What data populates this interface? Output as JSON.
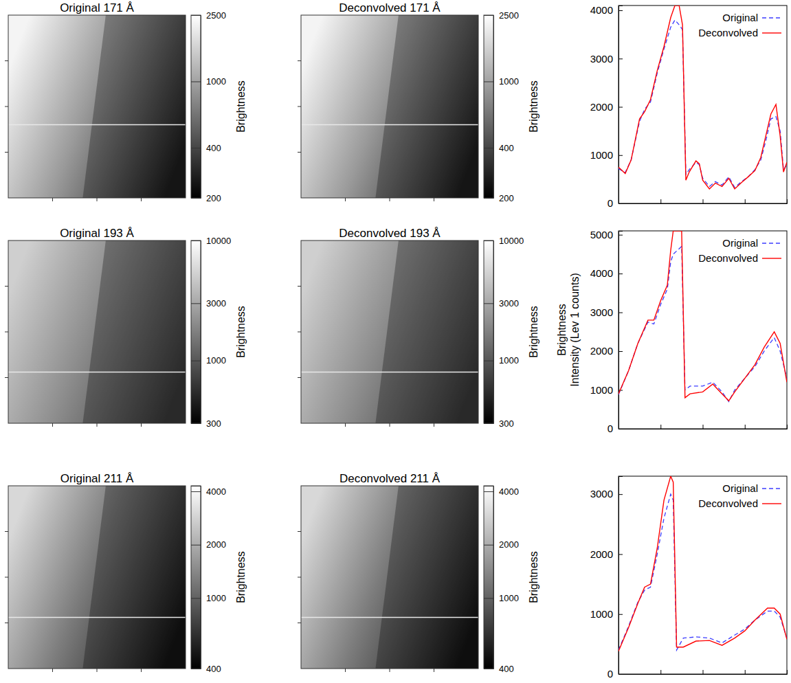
{
  "chart_data": [
    {
      "type": "image",
      "title": "Original 171 Å",
      "log": true,
      "colorbar": {
        "label": "Brightness",
        "range": [
          200,
          2500
        ],
        "ticks": [
          200,
          400,
          1000,
          2500
        ]
      }
    },
    {
      "type": "image",
      "title": "Deconvolved 171 Å",
      "log": true,
      "colorbar": {
        "label": "Brightness",
        "range": [
          200,
          2500
        ],
        "ticks": [
          200,
          400,
          1000,
          2500
        ]
      }
    },
    {
      "type": "line",
      "tick_labels": "y",
      "legend": "upper right",
      "x": [
        0,
        8,
        15,
        25,
        31,
        38,
        46,
        54,
        62,
        67,
        72,
        76,
        80,
        84,
        92,
        96,
        100,
        108,
        115,
        123,
        131,
        138,
        146,
        154,
        162,
        169,
        175,
        181,
        187,
        192,
        196,
        200
      ],
      "xlim": [
        0,
        200
      ],
      "xticks": [
        0,
        50,
        100,
        150,
        200
      ],
      "ylim": [
        0,
        4100
      ],
      "yticks": [
        0,
        1000,
        2000,
        3000,
        4000
      ],
      "series": [
        {
          "name": "Original",
          "color": "#3c3cff",
          "line_style": "dashed",
          "values": [
            720,
            640,
            900,
            1700,
            1950,
            2100,
            2700,
            3200,
            3650,
            3800,
            3700,
            3600,
            600,
            700,
            850,
            800,
            520,
            350,
            450,
            380,
            550,
            330,
            450,
            550,
            700,
            900,
            1300,
            1750,
            1800,
            1500,
            700,
            800
          ]
        },
        {
          "name": "Deconvolved",
          "color": "#ff0000",
          "line_style": "solid",
          "values": [
            750,
            620,
            900,
            1750,
            1900,
            2150,
            2750,
            3250,
            3850,
            4100,
            4100,
            3700,
            480,
            650,
            880,
            820,
            480,
            300,
            420,
            350,
            520,
            300,
            430,
            550,
            680,
            950,
            1400,
            1850,
            2050,
            1400,
            650,
            850
          ]
        }
      ]
    },
    {
      "type": "image",
      "title": "Original 193 Å",
      "log": true,
      "colorbar": {
        "label": "Brightness",
        "range": [
          300,
          10000
        ],
        "ticks": [
          300,
          1000,
          3000,
          10000
        ]
      }
    },
    {
      "type": "image",
      "title": "Deconvolved 193 Å",
      "log": true,
      "colorbar": {
        "label": "Brightness",
        "range": [
          300,
          10000
        ],
        "ticks": [
          300,
          1000,
          3000,
          10000
        ]
      }
    },
    {
      "type": "line",
      "tick_labels": "y",
      "legend": "upper right",
      "ylabel": [
        "Brightness",
        "Intensity (Lev 1 counts)"
      ],
      "x": [
        0,
        12,
        23,
        35,
        42,
        50,
        58,
        62,
        65,
        70,
        75,
        79,
        85,
        100,
        112,
        123,
        131,
        138,
        150,
        162,
        173,
        185,
        192,
        200
      ],
      "xlim": [
        0,
        200
      ],
      "xticks": [
        0,
        50,
        100,
        150,
        200
      ],
      "ylim": [
        0,
        5100
      ],
      "yticks": [
        0,
        1000,
        2000,
        3000,
        4000,
        5000
      ],
      "series": [
        {
          "name": "Original",
          "color": "#3c3cff",
          "line_style": "dashed",
          "values": [
            880,
            1500,
            2200,
            2750,
            2700,
            3200,
            3600,
            4300,
            4500,
            4600,
            4700,
            1000,
            1100,
            1100,
            1200,
            950,
            700,
            1000,
            1300,
            1600,
            2000,
            2350,
            2000,
            1300
          ]
        },
        {
          "name": "Deconvolved",
          "color": "#ff0000",
          "line_style": "solid",
          "values": [
            900,
            1500,
            2200,
            2800,
            2800,
            3300,
            3700,
            4600,
            5100,
            5100,
            5100,
            800,
            900,
            950,
            1150,
            900,
            720,
            950,
            1300,
            1650,
            2100,
            2500,
            2200,
            1200
          ]
        }
      ]
    },
    {
      "type": "image",
      "title": "Original 211 Å",
      "log": true,
      "colorbar": {
        "label": "Brightness",
        "range": [
          400,
          4300
        ],
        "ticks": [
          400,
          1000,
          2000,
          4000
        ]
      }
    },
    {
      "type": "image",
      "title": "Deconvolved 211 Å",
      "log": true,
      "colorbar": {
        "label": "Brightness",
        "range": [
          400,
          4300
        ],
        "ticks": [
          400,
          1000,
          2000,
          4000
        ]
      }
    },
    {
      "type": "line",
      "tick_labels": "y",
      "legend": "upper right",
      "x": [
        0,
        12,
        23,
        31,
        38,
        46,
        54,
        62,
        65,
        69,
        77,
        92,
        108,
        123,
        138,
        150,
        162,
        177,
        185,
        192,
        200
      ],
      "xlim": [
        0,
        200
      ],
      "xticks": [
        0,
        50,
        100,
        150,
        200
      ],
      "ylim": [
        0,
        3300
      ],
      "yticks": [
        0,
        1000,
        2000,
        3000
      ],
      "series": [
        {
          "name": "Original",
          "color": "#3c3cff",
          "line_style": "dashed",
          "values": [
            400,
            800,
            1200,
            1400,
            1450,
            2000,
            2600,
            3000,
            2900,
            400,
            600,
            620,
            600,
            520,
            650,
            750,
            900,
            1050,
            1050,
            950,
            600
          ]
        },
        {
          "name": "Deconvolved",
          "color": "#ff0000",
          "line_style": "solid",
          "values": [
            380,
            780,
            1180,
            1450,
            1500,
            2100,
            2900,
            3300,
            3200,
            450,
            450,
            550,
            560,
            480,
            600,
            720,
            900,
            1100,
            1100,
            1000,
            580
          ]
        }
      ]
    }
  ]
}
